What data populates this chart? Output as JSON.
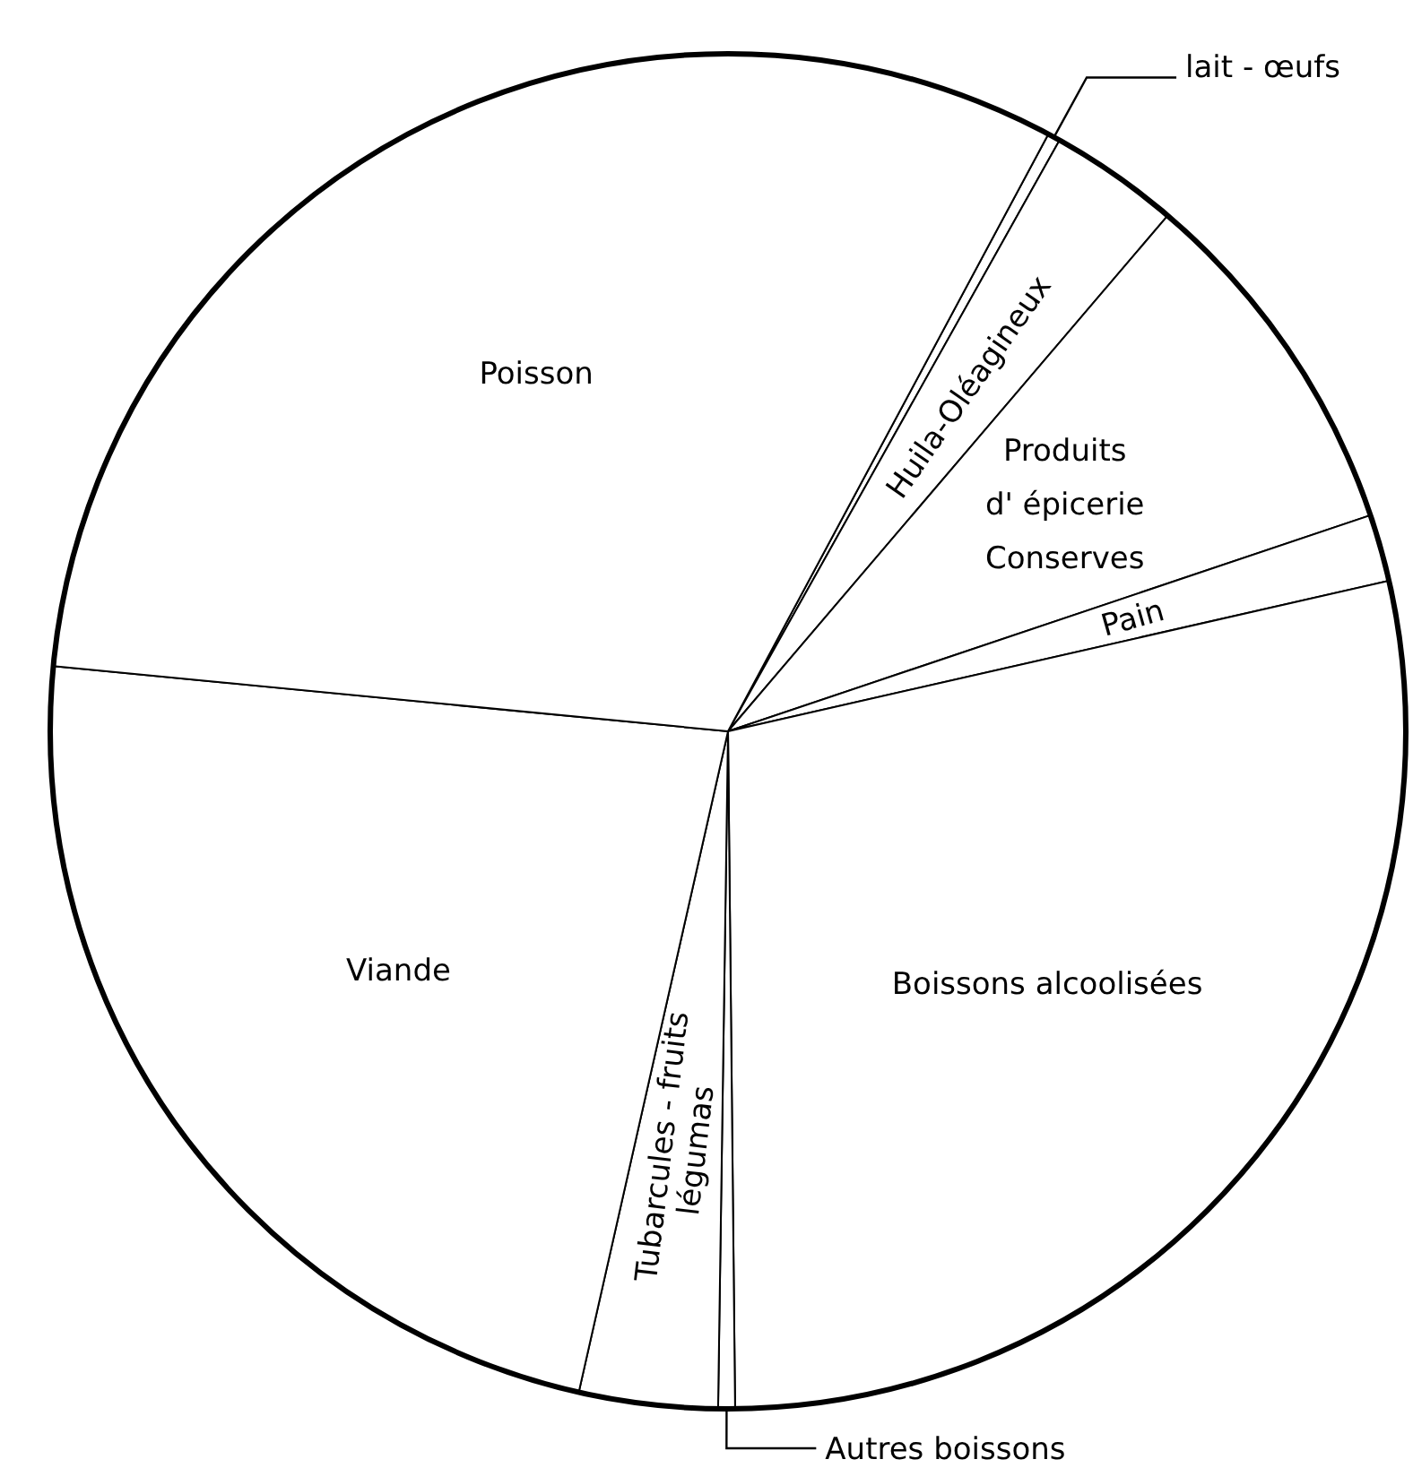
{
  "chart_data": {
    "type": "pie",
    "categories": [
      "lait - œufs",
      "Huila-Oléagineux",
      "Produits\nd' épicerie\nConserves",
      "Pain",
      "Boissons alcoolisées",
      "Autres boissons",
      "Tubarcules - fruits\nlégumas",
      "Viande",
      "Poisson"
    ],
    "values": [
      0.3,
      3.1,
      8.6,
      1.6,
      28.4,
      0.4,
      3.3,
      23.0,
      31.3
    ],
    "colors": [
      "#ffffff",
      "#ffffff",
      "#ffffff",
      "#ffffff",
      "#ffffff",
      "#ffffff",
      "#ffffff",
      "#ffffff",
      "#ffffff"
    ]
  }
}
